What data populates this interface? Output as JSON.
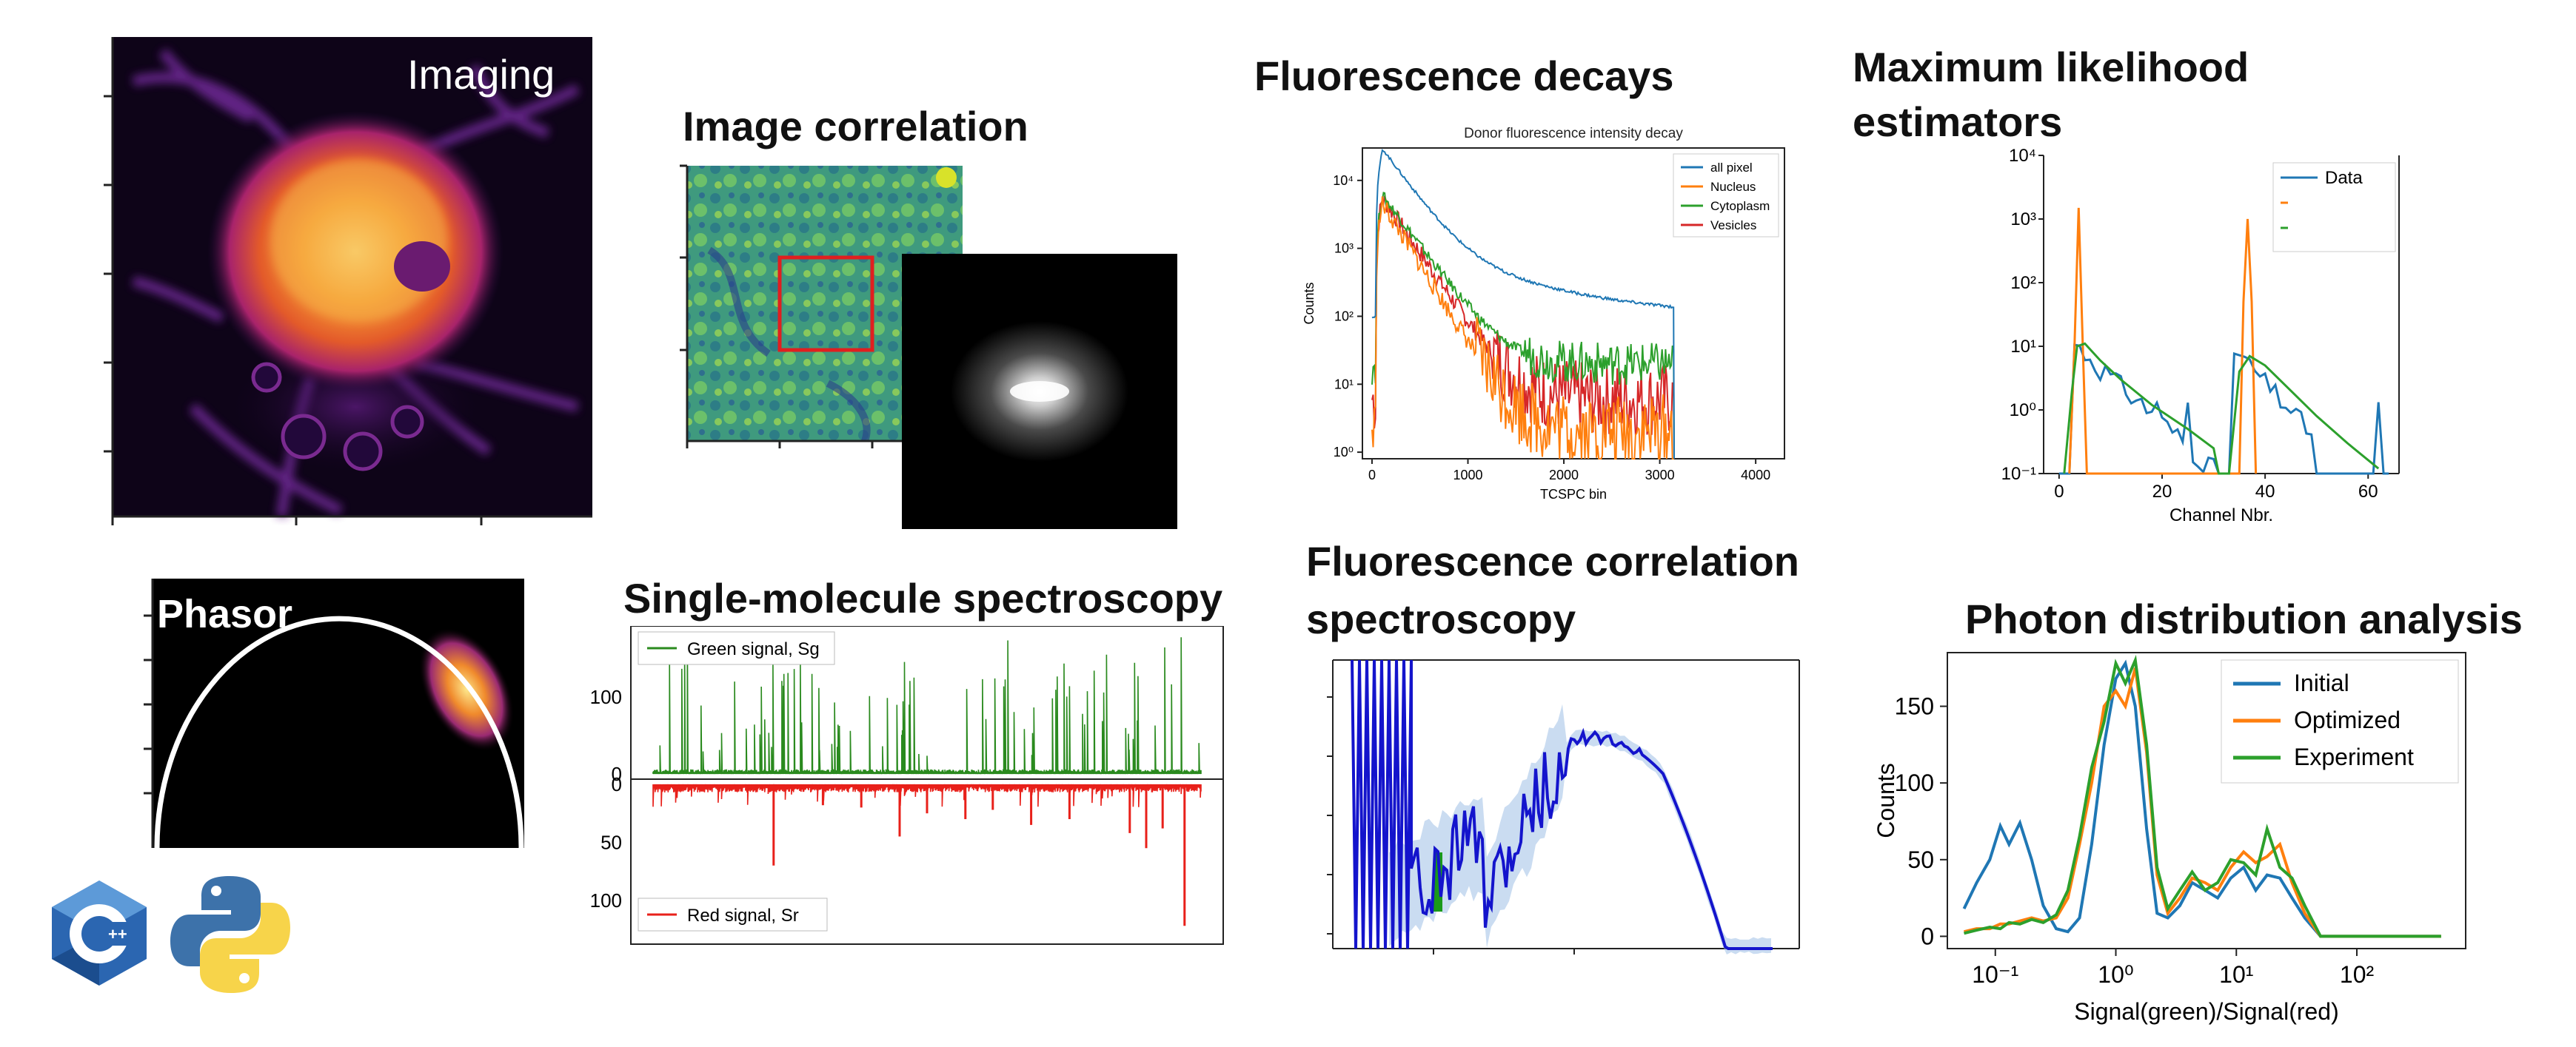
{
  "titles": {
    "imaging": "Imaging",
    "image_correlation": "Image correlation",
    "fluorescence_decays": "Fluorescence decays",
    "mle_line1": "Maximum likelihood",
    "mle_line2": "estimators",
    "phasor": "Phasor",
    "smfs": "Single-molecule spectroscopy",
    "fcs_line1": "Fluorescence correlation",
    "fcs_line2": "spectroscopy",
    "pda": "Photon distribution analysis"
  },
  "logos": {
    "cpp": "cpp-logo",
    "python": "python-logo"
  },
  "chart_data": [
    {
      "id": "decay",
      "type": "line",
      "title": "Donor fluorescence intensity decay",
      "xlabel": "TCSPC bin",
      "ylabel": "Counts",
      "xlim": [
        -100,
        4300
      ],
      "ylim": [
        0.8,
        30000
      ],
      "yscale": "log",
      "xticks": [
        "0",
        "1000",
        "2000",
        "3000",
        "4000"
      ],
      "yticks": [
        "10⁰",
        "10¹",
        "10²",
        "10³",
        "10⁴"
      ],
      "legend": "top-right",
      "series": [
        {
          "name": "all pixel",
          "color": "#1f77b4",
          "peak": 28000,
          "fast": 1100,
          "tau": 220,
          "base": 100
        },
        {
          "name": "Nucleus",
          "color": "#ff7f0e",
          "peak": 4500,
          "fast": 0,
          "tau": 190,
          "base": 2
        },
        {
          "name": "Cytoplasm",
          "color": "#2ca02c",
          "peak": 6000,
          "fast": 0,
          "tau": 230,
          "base": 20
        },
        {
          "name": "Vesicles",
          "color": "#d62728",
          "peak": 5500,
          "fast": 0,
          "tau": 210,
          "base": 6
        }
      ]
    },
    {
      "id": "mle",
      "type": "line",
      "xlabel": "Channel Nbr.",
      "xlim": [
        -3,
        66
      ],
      "ylim": [
        0.1,
        10000
      ],
      "yscale": "log",
      "xticks": [
        "0",
        "20",
        "40",
        "60"
      ],
      "yticks": [
        "10⁻¹",
        "10⁰",
        "10¹",
        "10²",
        "10³",
        "10⁴"
      ],
      "legend": "top-right",
      "series": [
        {
          "name": "Data",
          "color": "#1f77b4"
        },
        {
          "name": "",
          "color": "#ff7f0e"
        },
        {
          "name": "",
          "color": "#2ca02c"
        }
      ]
    },
    {
      "id": "smfs",
      "type": "line",
      "top_yticks": [
        "100",
        "0"
      ],
      "bottom_yticks": [
        "0",
        "50",
        "100"
      ],
      "series": [
        {
          "name": "Green signal, Sg",
          "color": "#2a8a1e",
          "ylim": [
            0,
            185
          ]
        },
        {
          "name": "Red signal, Sr",
          "color": "#e8201a",
          "ylim": [
            0,
            125
          ]
        }
      ],
      "red_spikes": [
        [
          0.22,
          70
        ],
        [
          0.38,
          20
        ],
        [
          0.45,
          45
        ],
        [
          0.57,
          30
        ],
        [
          0.62,
          22
        ],
        [
          0.76,
          30
        ],
        [
          0.87,
          42
        ],
        [
          0.9,
          55
        ],
        [
          0.97,
          122
        ],
        [
          0.31,
          18
        ],
        [
          0.5,
          25
        ],
        [
          0.69,
          35
        ],
        [
          0.93,
          38
        ]
      ]
    },
    {
      "id": "fcs",
      "type": "line",
      "series": [
        {
          "name": "",
          "color": "#1414cc"
        }
      ]
    },
    {
      "id": "pda",
      "type": "line",
      "xlabel": "Signal(green)/Signal(red)",
      "ylabel": "Counts",
      "xscale": "log",
      "xlim": [
        0.04,
        800
      ],
      "ylim": [
        -8,
        185
      ],
      "xticks": [
        "10⁻¹",
        "10⁰",
        "10¹",
        "10²"
      ],
      "yticks": [
        "0",
        "50",
        "100",
        "150"
      ],
      "legend": "top-right",
      "series": [
        {
          "name": "Initial",
          "color": "#1f77b4",
          "x": [
            0.055,
            0.07,
            0.09,
            0.11,
            0.13,
            0.16,
            0.2,
            0.25,
            0.32,
            0.4,
            0.5,
            0.63,
            0.8,
            1.0,
            1.2,
            1.45,
            1.8,
            2.2,
            2.7,
            3.4,
            4.3,
            5.5,
            7,
            9,
            11.5,
            14.5,
            18,
            23,
            29,
            37,
            50,
            100,
            200,
            500
          ],
          "y": [
            18,
            35,
            50,
            72,
            60,
            74,
            50,
            20,
            5,
            3,
            12,
            60,
            125,
            168,
            178,
            150,
            70,
            15,
            12,
            20,
            35,
            30,
            25,
            38,
            45,
            30,
            40,
            38,
            25,
            12,
            0,
            0,
            0,
            0
          ]
        },
        {
          "name": "Optimized",
          "color": "#ff7f0e",
          "x": [
            0.055,
            0.07,
            0.09,
            0.11,
            0.13,
            0.16,
            0.2,
            0.25,
            0.32,
            0.4,
            0.5,
            0.63,
            0.8,
            1.0,
            1.2,
            1.45,
            1.8,
            2.2,
            2.7,
            3.4,
            4.3,
            5.5,
            7,
            9,
            11.5,
            14.5,
            18,
            23,
            29,
            37,
            50,
            100,
            200,
            500
          ],
          "y": [
            3,
            5,
            5,
            8,
            8,
            10,
            12,
            10,
            12,
            25,
            60,
            100,
            150,
            160,
            150,
            175,
            120,
            40,
            15,
            25,
            38,
            35,
            30,
            45,
            55,
            48,
            52,
            60,
            35,
            15,
            0,
            0,
            0,
            0
          ]
        },
        {
          "name": "Experiment",
          "color": "#2ca02c",
          "x": [
            0.055,
            0.07,
            0.09,
            0.11,
            0.13,
            0.16,
            0.2,
            0.25,
            0.32,
            0.4,
            0.5,
            0.63,
            0.8,
            1.0,
            1.2,
            1.45,
            1.8,
            2.2,
            2.7,
            3.4,
            4.3,
            5.5,
            7,
            9,
            11.5,
            14.5,
            18,
            23,
            29,
            37,
            50,
            100,
            200,
            500
          ],
          "y": [
            2,
            4,
            6,
            5,
            9,
            8,
            11,
            9,
            14,
            30,
            65,
            110,
            140,
            178,
            165,
            180,
            125,
            45,
            18,
            30,
            42,
            30,
            35,
            50,
            48,
            40,
            70,
            45,
            38,
            20,
            0,
            0,
            0,
            0
          ]
        }
      ]
    }
  ]
}
